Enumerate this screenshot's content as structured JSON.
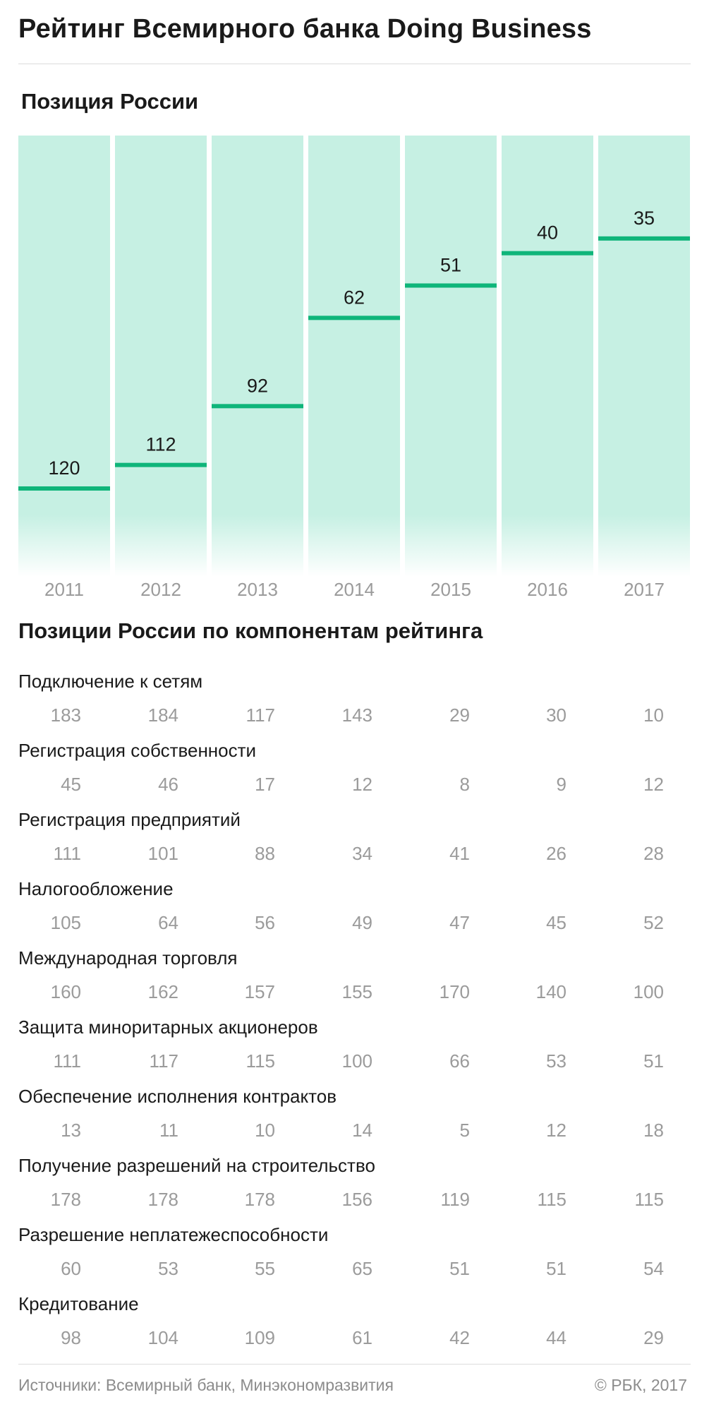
{
  "header": {
    "title": "Рейтинг Всемирного банка Doing Business",
    "subtitle": "Позиция России"
  },
  "chart_data": {
    "type": "bar",
    "title": "Позиция России",
    "categories": [
      "2011",
      "2012",
      "2013",
      "2014",
      "2015",
      "2016",
      "2017"
    ],
    "values": [
      120,
      112,
      92,
      62,
      51,
      40,
      35
    ],
    "ylim": [
      0,
      150
    ],
    "inverted": true,
    "xlabel": "",
    "ylabel": "",
    "colors": {
      "bar_background": "#c6f0e3",
      "marker": "#0fb57a",
      "year_label": "#9b9b9b"
    }
  },
  "components": {
    "title": "Позиции России по компонентам рейтинга",
    "rows": [
      {
        "label": "Подключение к сетям",
        "values": [
          "183",
          "184",
          "117",
          "143",
          "29",
          "30",
          "10"
        ]
      },
      {
        "label": "Регистрация собственности",
        "values": [
          "45",
          "46",
          "17",
          "12",
          "8",
          "9",
          "12"
        ]
      },
      {
        "label": "Регистрация предприятий",
        "values": [
          "111",
          "101",
          "88",
          "34",
          "41",
          "26",
          "28"
        ]
      },
      {
        "label": "Налогообложение",
        "values": [
          "105",
          "64",
          "56",
          "49",
          "47",
          "45",
          "52"
        ]
      },
      {
        "label": "Международная торговля",
        "values": [
          "160",
          "162",
          "157",
          "155",
          "170",
          "140",
          "100"
        ]
      },
      {
        "label": "Защита миноритарных акционеров",
        "values": [
          "111",
          "117",
          "115",
          "100",
          "66",
          "53",
          "51"
        ]
      },
      {
        "label": "Обеспечение исполнения контрактов",
        "values": [
          "13",
          "11",
          "10",
          "14",
          "5",
          "12",
          "18"
        ]
      },
      {
        "label": "Получение разрешений на строительство",
        "values": [
          "178",
          "178",
          "178",
          "156",
          "119",
          "115",
          "115"
        ]
      },
      {
        "label": "Разрешение неплатежеспособности",
        "values": [
          "60",
          "53",
          "55",
          "65",
          "51",
          "51",
          "54"
        ]
      },
      {
        "label": "Кредитование",
        "values": [
          "98",
          "104",
          "109",
          "61",
          "42",
          "44",
          "29"
        ]
      }
    ]
  },
  "footer": {
    "sources": "Источники: Всемирный банк, Минэкономразвития",
    "copyright": "© РБК, 2017"
  }
}
